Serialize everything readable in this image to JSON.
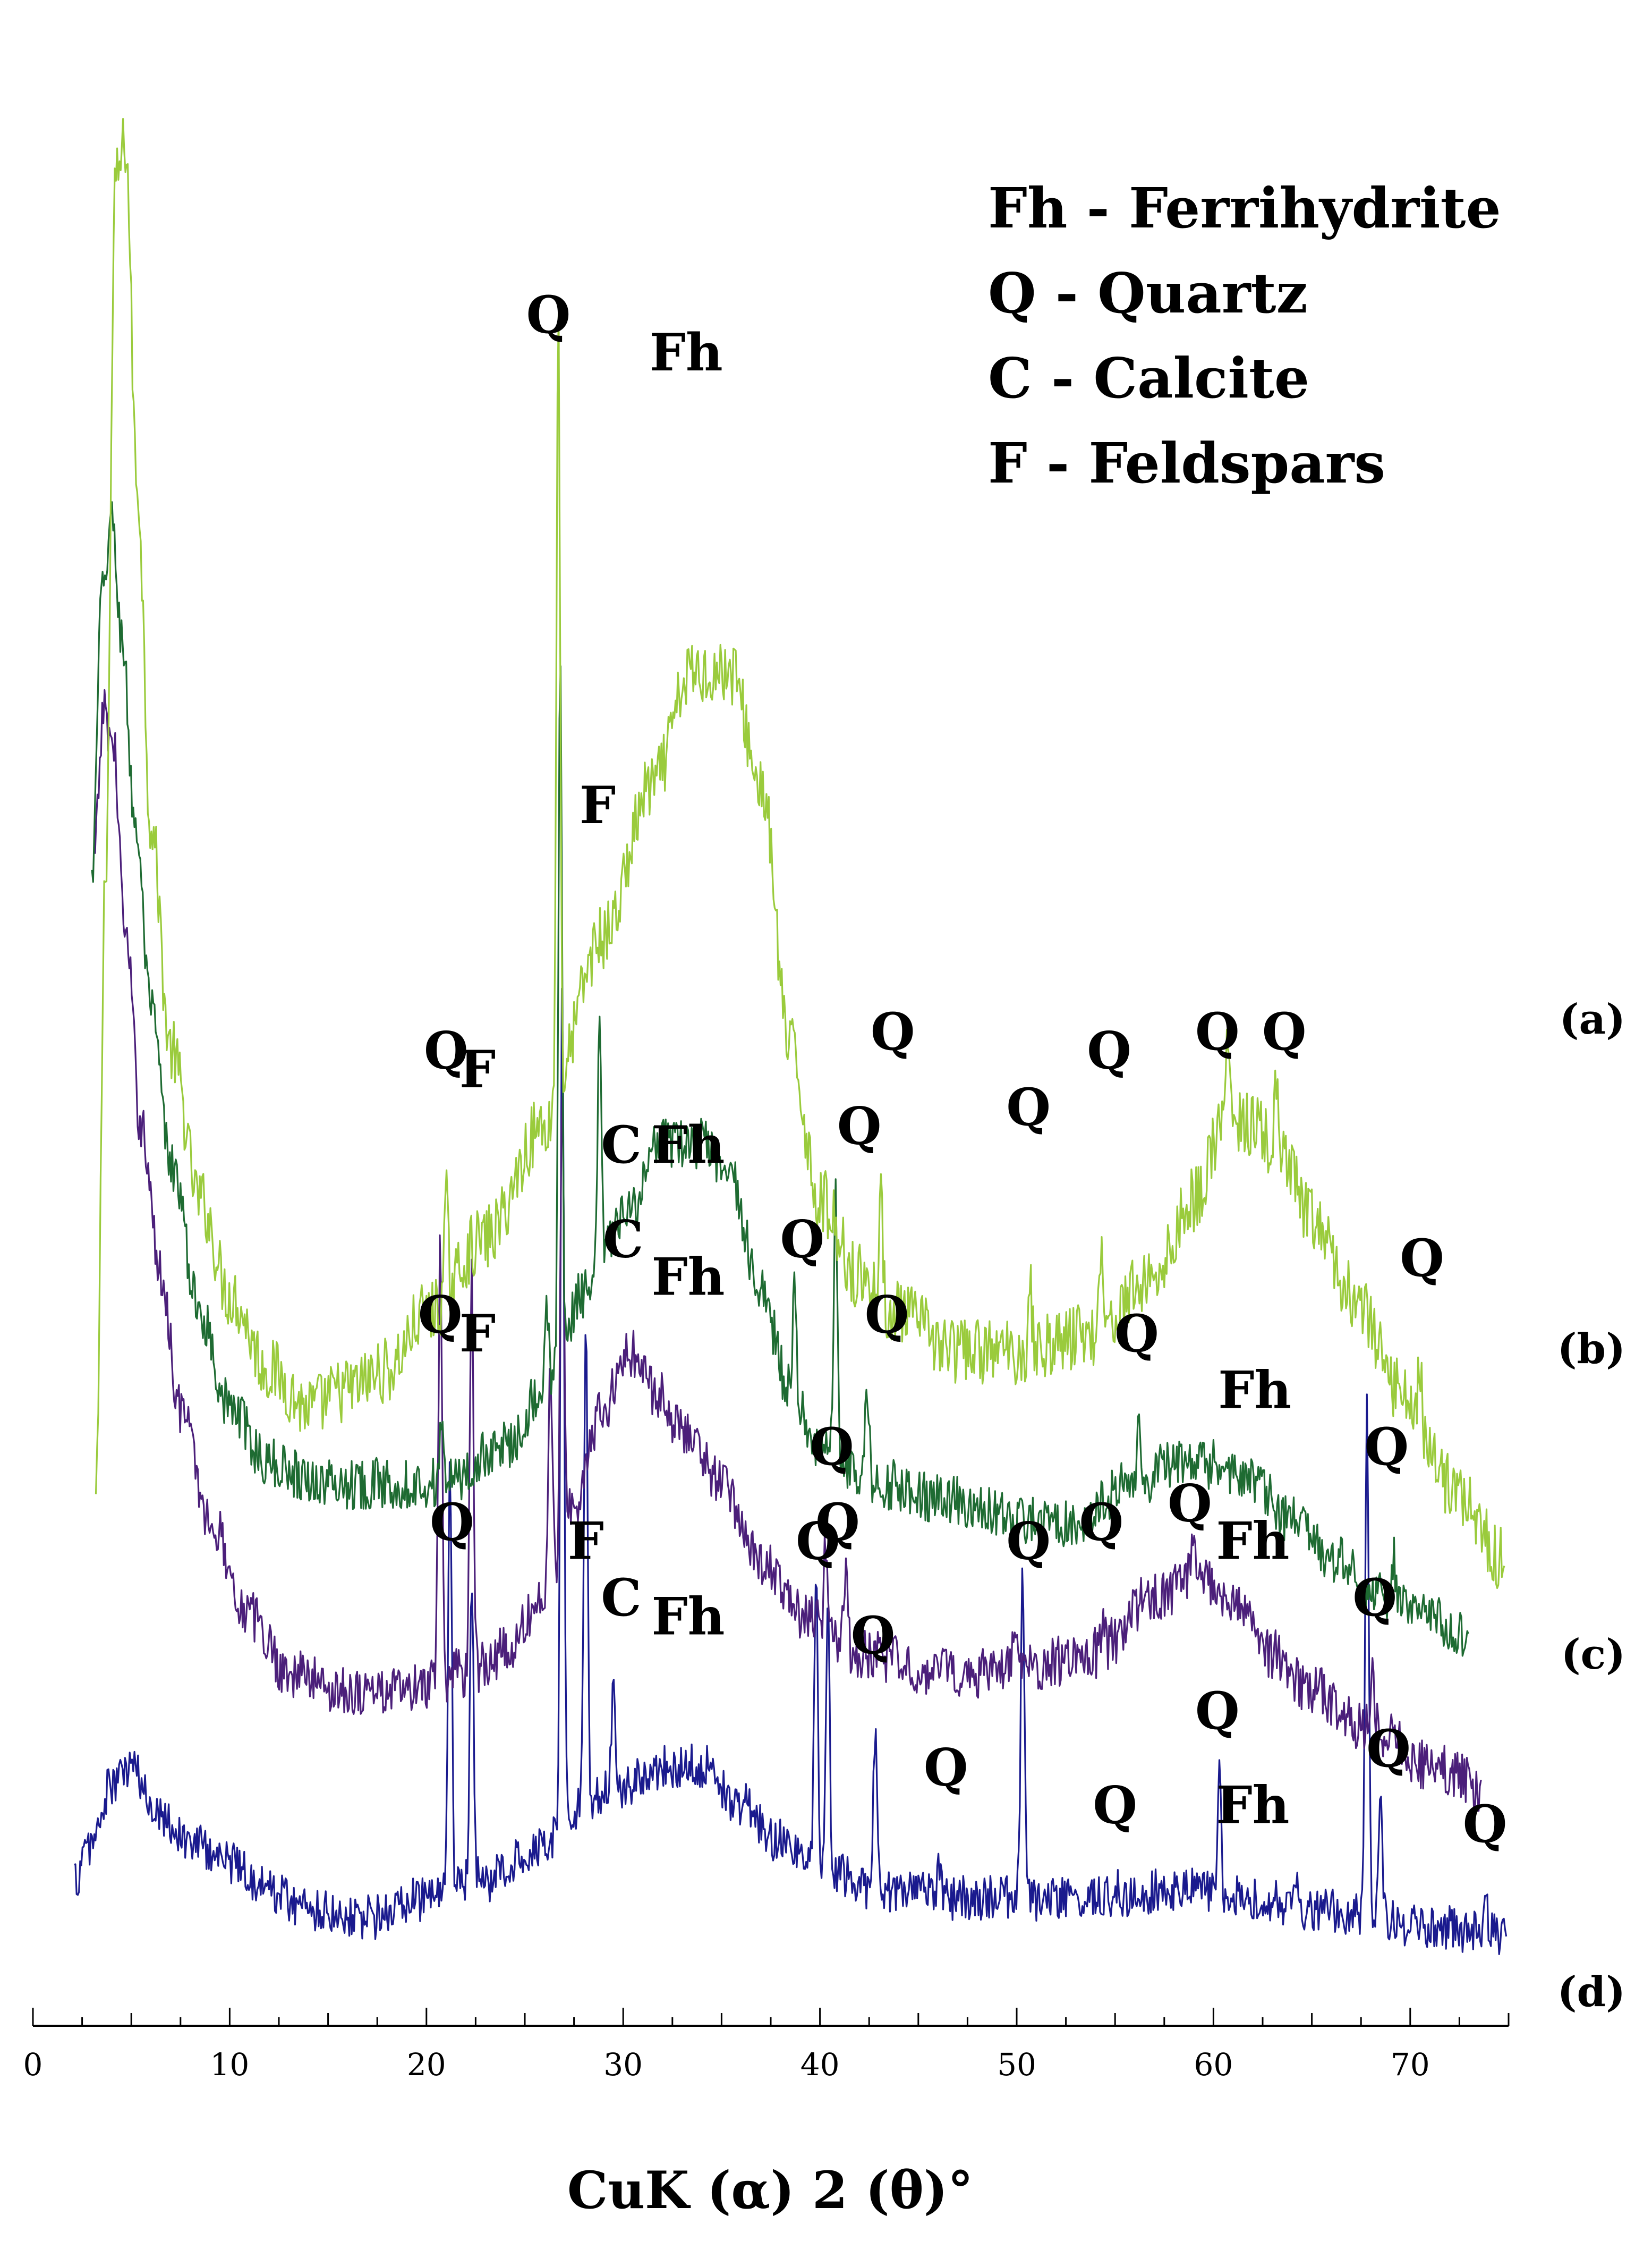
{
  "chart_data": {
    "type": "line",
    "title": "",
    "xlabel": "CuK (α) 2 (θ)°",
    "ylabel": "",
    "xlim": [
      0,
      75
    ],
    "x_ticks": [
      0,
      10,
      20,
      30,
      40,
      50,
      60,
      70
    ],
    "y_axis_shown": false,
    "grid": false,
    "legend": {
      "placement": "top-right",
      "entries": [
        "Fh - Ferrihydrite",
        "Q - Quartz",
        "C - Calcite",
        "F - Feldspars"
      ]
    },
    "series": [
      {
        "name": "(a)",
        "color": "#9acb3c",
        "x_start": 3.2,
        "x_end": 74.8,
        "baseline": 31,
        "noise": 1.1,
        "points": [
          [
            3.2,
            26
          ],
          [
            3.7,
            60
          ],
          [
            4.2,
            96
          ],
          [
            4.7,
            98
          ],
          [
            5.3,
            80
          ],
          [
            6,
            62
          ],
          [
            7,
            50
          ],
          [
            8.5,
            42
          ],
          [
            10,
            37
          ],
          [
            12,
            33
          ],
          [
            14,
            31
          ],
          [
            16,
            32
          ],
          [
            18,
            33
          ],
          [
            20,
            36
          ],
          [
            23,
            40
          ],
          [
            26,
            46
          ],
          [
            29,
            56
          ],
          [
            31.5,
            64
          ],
          [
            33.5,
            70
          ],
          [
            35.5,
            70
          ],
          [
            37,
            64
          ],
          [
            38.5,
            50
          ],
          [
            40,
            42
          ],
          [
            42,
            38
          ],
          [
            44,
            36
          ],
          [
            47,
            34
          ],
          [
            50,
            34
          ],
          [
            54,
            35
          ],
          [
            57,
            38
          ],
          [
            59,
            42
          ],
          [
            60.5,
            46
          ],
          [
            62,
            46
          ],
          [
            63.5,
            44
          ],
          [
            65,
            41
          ],
          [
            67,
            37
          ],
          [
            69.5,
            32
          ],
          [
            72,
            27
          ],
          [
            74.8,
            23
          ]
        ],
        "peaks": [
          [
            21,
            5
          ],
          [
            26.7,
            42
          ],
          [
            43.1,
            5
          ],
          [
            50.7,
            3
          ],
          [
            54.3,
            5
          ],
          [
            60.7,
            5
          ],
          [
            63.2,
            4
          ],
          [
            70.5,
            3
          ]
        ],
        "labels": [
          {
            "text": "Q",
            "x": 21,
            "y": 49
          },
          {
            "text": "Q",
            "x": 26.2,
            "y": 88
          },
          {
            "text": "Fh",
            "x": 33.2,
            "y": 86
          },
          {
            "text": "F",
            "x": 28.7,
            "y": 62
          },
          {
            "text": "Q",
            "x": 43.7,
            "y": 50
          },
          {
            "text": "Q",
            "x": 50.6,
            "y": 46
          },
          {
            "text": "Q",
            "x": 54.7,
            "y": 49
          },
          {
            "text": "Q",
            "x": 60.2,
            "y": 50
          },
          {
            "text": "Q",
            "x": 63.6,
            "y": 50
          },
          {
            "text": "Q",
            "x": 70.6,
            "y": 38
          }
        ]
      },
      {
        "name": "(b)",
        "color": "#1e6b32",
        "x_start": 3,
        "x_end": 73,
        "baseline": 24,
        "noise": 0.85,
        "points": [
          [
            3,
            59
          ],
          [
            3.5,
            74
          ],
          [
            4,
            78
          ],
          [
            4.5,
            72
          ],
          [
            5.2,
            62
          ],
          [
            6,
            52
          ],
          [
            7,
            44
          ],
          [
            8.5,
            36
          ],
          [
            10,
            31
          ],
          [
            12,
            28
          ],
          [
            15,
            27
          ],
          [
            18,
            27
          ],
          [
            21,
            27
          ],
          [
            24,
            29
          ],
          [
            26,
            32
          ],
          [
            28,
            37
          ],
          [
            30,
            41
          ],
          [
            32,
            45
          ],
          [
            34,
            45
          ],
          [
            35.5,
            43
          ],
          [
            37,
            37
          ],
          [
            38.5,
            32
          ],
          [
            40,
            29
          ],
          [
            43,
            27
          ],
          [
            47,
            26
          ],
          [
            50,
            25
          ],
          [
            53,
            25
          ],
          [
            56,
            27
          ],
          [
            58,
            28
          ],
          [
            60,
            28
          ],
          [
            62,
            27
          ],
          [
            64,
            25
          ],
          [
            66,
            23
          ],
          [
            68.5,
            21
          ],
          [
            71,
            20
          ],
          [
            73,
            19
          ]
        ],
        "peaks": [
          [
            20.8,
            4
          ],
          [
            26.1,
            5
          ],
          [
            26.8,
            37
          ],
          [
            28.8,
            13
          ],
          [
            38.7,
            5
          ],
          [
            40.8,
            14
          ],
          [
            42.4,
            5
          ],
          [
            56.2,
            3
          ],
          [
            69.2,
            2
          ]
        ],
        "labels": [
          {
            "text": "Q",
            "x": 20.7,
            "y": 35
          },
          {
            "text": "F",
            "x": 22.6,
            "y": 34
          },
          {
            "text": "C",
            "x": 29.9,
            "y": 44
          },
          {
            "text": "Fh",
            "x": 33.3,
            "y": 44
          },
          {
            "text": "Q",
            "x": 39.1,
            "y": 39
          },
          {
            "text": "Q",
            "x": 42,
            "y": 45
          },
          {
            "text": "Q",
            "x": 43.4,
            "y": 35
          },
          {
            "text": "Q",
            "x": 56.1,
            "y": 34
          },
          {
            "text": "Fh",
            "x": 62.1,
            "y": 31
          },
          {
            "text": "Q",
            "x": 68.8,
            "y": 28
          }
        ]
      },
      {
        "name": "(c)",
        "color": "#4b1f7a",
        "x_start": 3.1,
        "x_end": 73.6,
        "baseline": 15,
        "noise": 0.85,
        "points": [
          [
            3.1,
            60
          ],
          [
            3.6,
            68
          ],
          [
            4.1,
            66
          ],
          [
            4.7,
            56
          ],
          [
            5.5,
            46
          ],
          [
            6.5,
            38
          ],
          [
            7.5,
            31
          ],
          [
            9,
            25
          ],
          [
            11,
            20
          ],
          [
            13,
            17
          ],
          [
            16,
            16
          ],
          [
            19,
            16
          ],
          [
            22,
            17
          ],
          [
            24,
            18
          ],
          [
            26,
            21
          ],
          [
            27.5,
            26
          ],
          [
            29,
            31
          ],
          [
            30.3,
            34
          ],
          [
            31.5,
            32
          ],
          [
            33,
            30
          ],
          [
            35,
            27
          ],
          [
            37,
            23
          ],
          [
            39,
            20
          ],
          [
            42,
            18
          ],
          [
            46,
            17
          ],
          [
            50,
            17
          ],
          [
            54,
            18
          ],
          [
            57,
            21
          ],
          [
            59,
            22
          ],
          [
            61,
            21
          ],
          [
            63,
            18
          ],
          [
            65,
            16
          ],
          [
            68,
            14
          ],
          [
            71,
            12
          ],
          [
            73.6,
            11
          ]
        ],
        "peaks": [
          [
            20.7,
            23
          ],
          [
            22.3,
            22
          ],
          [
            26.3,
            12
          ],
          [
            26.9,
            25
          ],
          [
            40.3,
            5
          ],
          [
            41.3,
            4
          ],
          [
            49.9,
            3
          ],
          [
            54.4,
            2
          ],
          [
            59,
            3
          ],
          [
            68.1,
            3
          ]
        ],
        "labels": [
          {
            "text": "F",
            "x": 22.6,
            "y": 48
          },
          {
            "text": "C",
            "x": 30,
            "y": 39
          },
          {
            "text": "Fh",
            "x": 33.3,
            "y": 37
          },
          {
            "text": "F",
            "x": 28.1,
            "y": 23
          },
          {
            "text": "Q",
            "x": 21.3,
            "y": 24
          },
          {
            "text": "Q",
            "x": 40.6,
            "y": 28
          },
          {
            "text": "Q",
            "x": 50.6,
            "y": 23
          },
          {
            "text": "Q",
            "x": 54.3,
            "y": 24
          },
          {
            "text": "Q",
            "x": 58.8,
            "y": 25
          },
          {
            "text": "Fh",
            "x": 62,
            "y": 23
          },
          {
            "text": "Q",
            "x": 68.2,
            "y": 20
          }
        ]
      },
      {
        "name": "(d)",
        "color": "#1a1a8e",
        "x_start": 2.1,
        "x_end": 74.9,
        "baseline": 3,
        "noise": 0.75,
        "points": [
          [
            2.1,
            6
          ],
          [
            3,
            8
          ],
          [
            4,
            11
          ],
          [
            5,
            12
          ],
          [
            6,
            10
          ],
          [
            8,
            8
          ],
          [
            10,
            7
          ],
          [
            12,
            5.5
          ],
          [
            14,
            4.5
          ],
          [
            17,
            4
          ],
          [
            20,
            5
          ],
          [
            23,
            6
          ],
          [
            26,
            8
          ],
          [
            28,
            10
          ],
          [
            30,
            11
          ],
          [
            32,
            12
          ],
          [
            34,
            12
          ],
          [
            36,
            10
          ],
          [
            38,
            8
          ],
          [
            40,
            6.5
          ],
          [
            43,
            5.5
          ],
          [
            47,
            5
          ],
          [
            50,
            5
          ],
          [
            54,
            5
          ],
          [
            58,
            5.5
          ],
          [
            62,
            5
          ],
          [
            65,
            4.5
          ],
          [
            68,
            4
          ],
          [
            71,
            3.5
          ],
          [
            74.9,
            3
          ]
        ],
        "peaks": [
          [
            21.2,
            23
          ],
          [
            22.3,
            16
          ],
          [
            26.9,
            45
          ],
          [
            28.1,
            26
          ],
          [
            29.5,
            6
          ],
          [
            39.8,
            16
          ],
          [
            40.4,
            14
          ],
          [
            42.8,
            8
          ],
          [
            46.1,
            2
          ],
          [
            50.3,
            18
          ],
          [
            55,
            1
          ],
          [
            60.3,
            6
          ],
          [
            64.2,
            2
          ],
          [
            67.8,
            28
          ],
          [
            68.5,
            6
          ],
          [
            73.8,
            3
          ]
        ],
        "labels": [
          {
            "text": "C",
            "x": 29.9,
            "y": 20
          },
          {
            "text": "Fh",
            "x": 33.3,
            "y": 19
          },
          {
            "text": "Q",
            "x": 39.9,
            "y": 23
          },
          {
            "text": "Q",
            "x": 40.9,
            "y": 24
          },
          {
            "text": "Q",
            "x": 42.7,
            "y": 18
          },
          {
            "text": "Q",
            "x": 46.4,
            "y": 11
          },
          {
            "text": "Q",
            "x": 55,
            "y": 9
          },
          {
            "text": "Q",
            "x": 60.2,
            "y": 14
          },
          {
            "text": "Fh",
            "x": 62,
            "y": 9
          },
          {
            "text": "Q",
            "x": 68.9,
            "y": 12
          },
          {
            "text": "Q",
            "x": 73.8,
            "y": 8
          }
        ]
      }
    ]
  }
}
